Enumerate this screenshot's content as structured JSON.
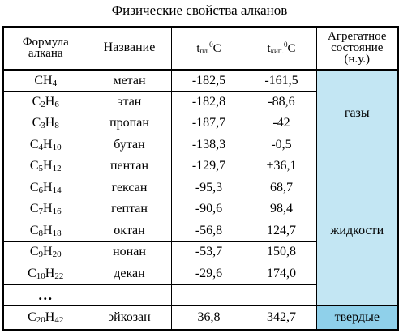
{
  "title": "Физические свойства алканов",
  "headers": {
    "formula": "Формула алкана",
    "name": "Название",
    "t_melt_label": "t",
    "t_melt_sub": "пл.",
    "t_melt_sup": "0",
    "t_melt_unit": "C",
    "t_boil_label": "t",
    "t_boil_sub": "кип.",
    "t_boil_sup": "0",
    "t_boil_unit": "C",
    "state": "Агрегатное состояние (н.у.)"
  },
  "rows": [
    {
      "f_c": "CH",
      "f_c_sub": "",
      "f_h": "",
      "f_h_sub": "4",
      "name": "метан",
      "tmelt": "-182,5",
      "tboil": "-161,5"
    },
    {
      "f_c": "C",
      "f_c_sub": "2",
      "f_h": "H",
      "f_h_sub": "6",
      "name": "этан",
      "tmelt": "-182,8",
      "tboil": "-88,6"
    },
    {
      "f_c": "C",
      "f_c_sub": "3",
      "f_h": "H",
      "f_h_sub": "8",
      "name": "пропан",
      "tmelt": "-187,7",
      "tboil": "-42"
    },
    {
      "f_c": "C",
      "f_c_sub": "4",
      "f_h": "H",
      "f_h_sub": "10",
      "name": "бутан",
      "tmelt": "-138,3",
      "tboil": "-0,5"
    },
    {
      "f_c": "C",
      "f_c_sub": "5",
      "f_h": "H",
      "f_h_sub": "12",
      "name": "пентан",
      "tmelt": "-129,7",
      "tboil": "+36,1"
    },
    {
      "f_c": "C",
      "f_c_sub": "6",
      "f_h": "H",
      "f_h_sub": "14",
      "name": "гексан",
      "tmelt": "-95,3",
      "tboil": "68,7"
    },
    {
      "f_c": "C",
      "f_c_sub": "7",
      "f_h": "H",
      "f_h_sub": "16",
      "name": "гептан",
      "tmelt": "-90,6",
      "tboil": "98,4"
    },
    {
      "f_c": "C",
      "f_c_sub": "8",
      "f_h": "H",
      "f_h_sub": "18",
      "name": "октан",
      "tmelt": "-56,8",
      "tboil": "124,7"
    },
    {
      "f_c": "C",
      "f_c_sub": "9",
      "f_h": "H",
      "f_h_sub": "20",
      "name": "нонан",
      "tmelt": "-53,7",
      "tboil": "150,8"
    },
    {
      "f_c": "C",
      "f_c_sub": "10",
      "f_h": "H",
      "f_h_sub": "22",
      "name": "декан",
      "tmelt": "-29,6",
      "tboil": "174,0"
    },
    {
      "f_c": "C",
      "f_c_sub": "20",
      "f_h": "H",
      "f_h_sub": "42",
      "name": "эйкозан",
      "tmelt": "36,8",
      "tboil": "342,7"
    }
  ],
  "ellipsis": "…",
  "states": {
    "gas": "газы",
    "liquid": "жидкости",
    "solid": "твердые"
  },
  "colors": {
    "state_bg": "#c3e6f3",
    "solid_bg": "#8fd0ea"
  }
}
